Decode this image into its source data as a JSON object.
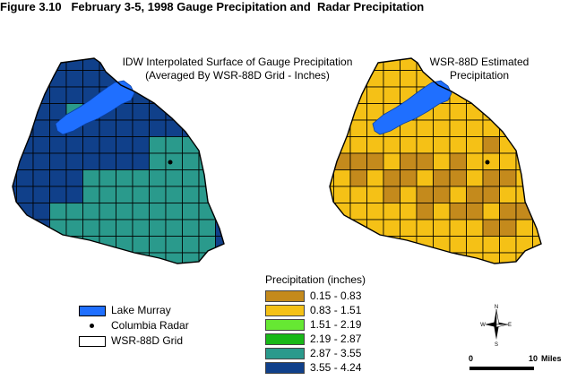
{
  "figure": {
    "number": "Figure 3.10",
    "title": "February 3-5, 1998 Gauge Precipitation and  Radar Precipitation"
  },
  "left_map": {
    "label_line1": "IDW Interpolated Surface of Gauge Precipitation",
    "label_line2": "(Averaged By WSR-88D Grid - Inches)"
  },
  "right_map": {
    "label_line1": "WSR-88D Estimated",
    "label_line2": "Precipitation"
  },
  "feature_legend": [
    {
      "label": "Lake Murray",
      "symbol": "swatch",
      "color": "#1f6fff"
    },
    {
      "label": "Columbia Radar",
      "symbol": "dot",
      "color": "#000000"
    },
    {
      "label": "WSR-88D Grid",
      "symbol": "swatch",
      "color": "#ffffff"
    }
  ],
  "precip_legend": {
    "title": "Precipitation (inches)",
    "classes": [
      {
        "range": "0.15 - 0.83",
        "color": "#c48a1c"
      },
      {
        "range": "0.83 - 1.51",
        "color": "#f5c116"
      },
      {
        "range": "1.51 - 2.19",
        "color": "#66e833"
      },
      {
        "range": "2.19 - 2.87",
        "color": "#18b818"
      },
      {
        "range": "2.87 - 3.55",
        "color": "#2a9a8c"
      },
      {
        "range": "3.55 - 4.24",
        "color": "#10408a"
      }
    ]
  },
  "compass": {
    "n": "N",
    "s": "S",
    "e": "E",
    "w": "W"
  },
  "scale": {
    "start": "0",
    "end": "10",
    "unit": "Miles"
  }
}
